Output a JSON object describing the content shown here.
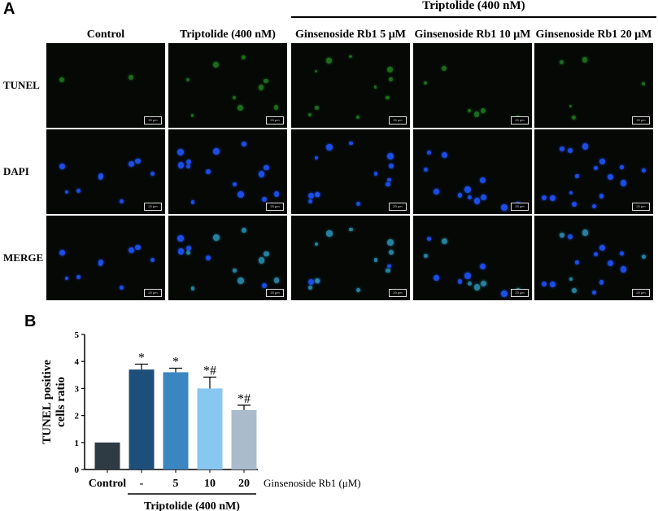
{
  "panel_a": {
    "letter": "A",
    "group_label": "Triptolide (400 nM)",
    "columns": [
      "Control",
      "Triptolide (400 nM)",
      "Ginsenoside Rb1 5 μM",
      "Ginsenoside Rb1 10 μM",
      "Ginsenoside Rb1 20 μM"
    ],
    "rows": [
      "TUNEL",
      "DAPI",
      "MERGE"
    ],
    "scale_bar_label": "20 μm",
    "colors": {
      "tunel": "#2fbf2f",
      "dapi": "#1f55ff",
      "background": "#050805"
    }
  },
  "panel_b": {
    "letter": "B",
    "x_caption": "Ginsenoside Rb1 (μM)",
    "group_label": "Triptolide (400 nM)"
  },
  "chart_data": {
    "type": "bar",
    "categories": [
      "Control",
      "-",
      "5",
      "10",
      "20"
    ],
    "values": [
      1.0,
      3.7,
      3.6,
      3.0,
      2.2
    ],
    "errors": [
      0,
      0.2,
      0.15,
      0.42,
      0.18
    ],
    "annotations": [
      "",
      "*",
      "*",
      "*#",
      "*#"
    ],
    "colors": [
      "#2e3a44",
      "#1d4f7a",
      "#3a86c0",
      "#88c8f0",
      "#aabccb"
    ],
    "ylabel": "TUNEL positive cells ratio",
    "ylim": [
      0,
      5
    ],
    "yticks": [
      0,
      1,
      2,
      3,
      4,
      5
    ],
    "grid": false
  }
}
